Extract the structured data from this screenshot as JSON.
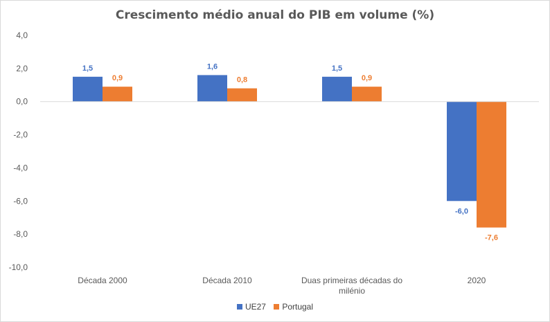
{
  "chart_data": {
    "type": "bar",
    "title": "Crescimento médio anual  do PIB em volume (%)",
    "categories": [
      "Década 2000",
      "Década 2010",
      "Duas primeiras décadas do milénio",
      "2020"
    ],
    "category_lines": [
      [
        "Década 2000"
      ],
      [
        "Década 2010"
      ],
      [
        "Duas primeiras décadas do",
        "milénio"
      ],
      [
        "2020"
      ]
    ],
    "series": [
      {
        "name": "UE27",
        "values": [
          1.5,
          1.6,
          1.5,
          -6.0
        ],
        "labels": [
          "1,5",
          "1,6",
          "1,5",
          "-6,0"
        ],
        "color": "#4472c4",
        "label_color": "#4472c4"
      },
      {
        "name": "Portugal",
        "values": [
          0.9,
          0.8,
          0.9,
          -7.6
        ],
        "labels": [
          "0,9",
          "0,8",
          "0,9",
          "-7,6"
        ],
        "color": "#ed7d31",
        "label_color": "#ed7d31"
      }
    ],
    "y_ticks": [
      4,
      2,
      0,
      -2,
      -4,
      -6,
      -8,
      -10
    ],
    "y_tick_labels": [
      "4,0",
      "2,0",
      "0,0",
      "-2,0",
      "-4,0",
      "-6,0",
      "-8,0",
      "-10,0"
    ],
    "ylim": [
      -10,
      4
    ],
    "xlabel": "",
    "ylabel": "",
    "grid": false,
    "legend_position": "bottom"
  }
}
